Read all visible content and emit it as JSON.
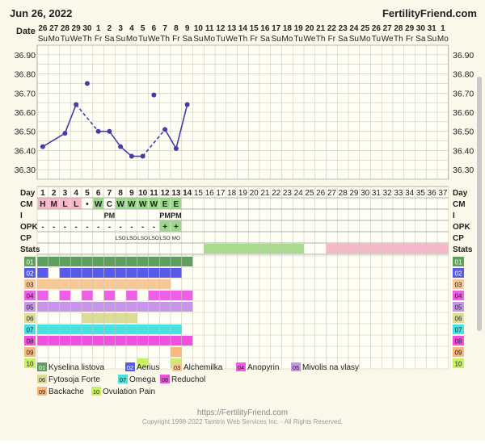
{
  "header": {
    "date": "Jun 26, 2022",
    "brand": "FertilityFriend.com",
    "date_row_label": "Date"
  },
  "dates": {
    "days": [
      "26",
      "27",
      "28",
      "29",
      "30",
      "1",
      "2",
      "3",
      "4",
      "5",
      "6",
      "7",
      "8",
      "9",
      "10",
      "11",
      "12",
      "13",
      "14",
      "15",
      "16",
      "17",
      "18",
      "19",
      "20",
      "21",
      "22",
      "23",
      "24",
      "25",
      "26",
      "27",
      "28",
      "29",
      "30",
      "31",
      "1"
    ],
    "weekdays": [
      "Su",
      "Mo",
      "Tu",
      "We",
      "Th",
      "Fr",
      "Sa",
      "Su",
      "Mo",
      "Tu",
      "We",
      "Th",
      "Fr",
      "Sa",
      "Su",
      "Mo",
      "Tu",
      "We",
      "Th",
      "Fr",
      "Sa",
      "Su",
      "Mo",
      "Tu",
      "We",
      "Th",
      "Fr",
      "Sa",
      "Su",
      "Mo",
      "Tu",
      "We",
      "Th",
      "Fr",
      "Sa",
      "Su",
      "Mo"
    ]
  },
  "chart_data": {
    "type": "line",
    "y_ticks": [
      "36.90",
      "36.80",
      "36.70",
      "36.60",
      "36.50",
      "36.40",
      "36.30"
    ],
    "ylim": [
      36.25,
      36.95
    ],
    "temperatures": [
      {
        "day": 1,
        "value": 36.42
      },
      {
        "day": 3,
        "value": 36.49
      },
      {
        "day": 4,
        "value": 36.64
      },
      {
        "day": 5,
        "value": 36.75
      },
      {
        "day": 6,
        "value": 36.5
      },
      {
        "day": 7,
        "value": 36.5
      },
      {
        "day": 8,
        "value": 36.42
      },
      {
        "day": 9,
        "value": 36.37
      },
      {
        "day": 10,
        "value": 36.37
      },
      {
        "day": 11,
        "value": 36.69
      },
      {
        "day": 12,
        "value": 36.51
      },
      {
        "day": 13,
        "value": 36.41
      },
      {
        "day": 14,
        "value": 36.64
      }
    ],
    "segments": [
      {
        "from": 1,
        "to": 3,
        "style": "solid"
      },
      {
        "from": 3,
        "to": 4,
        "style": "solid"
      },
      {
        "from": 4,
        "to": 6,
        "style": "dashed"
      },
      {
        "from": 6,
        "to": 7,
        "style": "solid"
      },
      {
        "from": 7,
        "to": 8,
        "style": "solid"
      },
      {
        "from": 8,
        "to": 9,
        "style": "solid"
      },
      {
        "from": 9,
        "to": 10,
        "style": "solid"
      },
      {
        "from": 10,
        "to": 12,
        "style": "dashed"
      },
      {
        "from": 12,
        "to": 13,
        "style": "solid"
      },
      {
        "from": 13,
        "to": 14,
        "style": "solid"
      }
    ],
    "line_color": "#4a3aa8"
  },
  "rows": {
    "labels": [
      "Day",
      "CM",
      "I",
      "OPK",
      "CP",
      "Stats"
    ],
    "days": [
      "1",
      "2",
      "3",
      "4",
      "5",
      "6",
      "7",
      "8",
      "9",
      "10",
      "11",
      "12",
      "13",
      "14",
      "15",
      "16",
      "17",
      "18",
      "19",
      "20",
      "21",
      "22",
      "23",
      "24",
      "25",
      "26",
      "27",
      "28",
      "29",
      "30",
      "31",
      "32",
      "33",
      "34",
      "35",
      "36",
      "37"
    ],
    "cm": [
      {
        "day": 1,
        "text": "H",
        "bg": "#f4b8c8"
      },
      {
        "day": 2,
        "text": "M",
        "bg": "#f4b8c8"
      },
      {
        "day": 3,
        "text": "L",
        "bg": "#f4b8c8"
      },
      {
        "day": 4,
        "text": "L",
        "bg": "#f4b8c8"
      },
      {
        "day": 5,
        "text": "•",
        "bg": ""
      },
      {
        "day": 6,
        "text": "W",
        "bg": "#9bd98a"
      },
      {
        "day": 7,
        "text": "C",
        "bg": ""
      },
      {
        "day": 8,
        "text": "W",
        "bg": "#9bd98a"
      },
      {
        "day": 9,
        "text": "W",
        "bg": "#9bd98a"
      },
      {
        "day": 10,
        "text": "W",
        "bg": "#9bd98a"
      },
      {
        "day": 11,
        "text": "W",
        "bg": "#9bd98a"
      },
      {
        "day": 12,
        "text": "E",
        "bg": "#9bd98a"
      },
      {
        "day": 13,
        "text": "E",
        "bg": "#9bd98a"
      }
    ],
    "intercourse": [
      {
        "day": 7,
        "text": "PM"
      },
      {
        "day": 12,
        "text": "PM"
      },
      {
        "day": 13,
        "text": "PM"
      }
    ],
    "opk": [
      {
        "day": 1,
        "text": "-"
      },
      {
        "day": 2,
        "text": "-"
      },
      {
        "day": 3,
        "text": "-"
      },
      {
        "day": 4,
        "text": "-"
      },
      {
        "day": 5,
        "text": "-"
      },
      {
        "day": 6,
        "text": "-"
      },
      {
        "day": 7,
        "text": "-"
      },
      {
        "day": 8,
        "text": "-"
      },
      {
        "day": 9,
        "text": "-"
      },
      {
        "day": 10,
        "text": "-"
      },
      {
        "day": 11,
        "text": "-"
      },
      {
        "day": 12,
        "text": "+",
        "bg": "#9bd98a"
      },
      {
        "day": 13,
        "text": "+",
        "bg": "#9bd98a"
      }
    ],
    "cp": [
      {
        "day": 8,
        "text": "LSO"
      },
      {
        "day": 9,
        "text": "LSO"
      },
      {
        "day": 10,
        "text": "LSO"
      },
      {
        "day": 11,
        "text": "LSO"
      },
      {
        "day": 12,
        "text": "LSO"
      },
      {
        "day": 13,
        "text": "MO"
      }
    ],
    "stats_bars": [
      {
        "from": 16,
        "to": 24,
        "color": "#a8dc8c"
      },
      {
        "from": 27,
        "to": 37,
        "color": "#f4b8c8"
      }
    ]
  },
  "medications": {
    "labels": [
      "01",
      "02",
      "03",
      "04",
      "05",
      "06",
      "07",
      "08",
      "09",
      "10"
    ],
    "colors": [
      "#5e9e5e",
      "#5a5ae8",
      "#f8c896",
      "#f05ee8",
      "#c896e8",
      "#dcdc96",
      "#48e0e0",
      "#f050e0",
      "#f8b87e",
      "#c8f064"
    ],
    "label_text_colors": [
      "#ffffff",
      "#ffffff",
      "#222222",
      "#222222",
      "#222222",
      "#222222",
      "#222222",
      "#222222",
      "#222222",
      "#222222"
    ],
    "bars": [
      [
        1,
        2,
        3,
        4,
        5,
        6,
        7,
        8,
        9,
        10,
        11,
        12,
        13,
        14
      ],
      [
        1,
        3,
        4,
        5,
        6,
        7,
        8,
        9,
        10,
        11,
        12,
        13
      ],
      [
        1,
        2,
        3,
        4,
        5,
        6,
        7,
        8,
        9,
        10,
        11,
        12
      ],
      [
        1,
        3,
        5,
        7,
        9,
        11,
        12,
        13,
        14
      ],
      [
        1,
        2,
        3,
        4,
        5,
        6,
        7,
        8,
        9,
        10,
        11,
        12,
        13,
        14
      ],
      [
        5,
        6,
        7,
        8,
        9
      ],
      [
        1,
        2,
        3,
        4,
        5,
        6,
        7,
        8,
        9,
        10,
        11,
        12,
        13
      ],
      [
        1,
        2,
        3,
        4,
        5,
        6,
        7,
        8,
        9,
        10,
        11,
        12,
        13,
        14
      ],
      [
        13
      ],
      [
        10,
        13
      ]
    ]
  },
  "legend": [
    {
      "code": "01",
      "name": "Kyselina listova"
    },
    {
      "code": "02",
      "name": "Aerius"
    },
    {
      "code": "03",
      "name": "Alchemilka"
    },
    {
      "code": "04",
      "name": "Anopyrin"
    },
    {
      "code": "05",
      "name": "Mivolis na vlasy"
    },
    {
      "code": "06",
      "name": "Fytosoja Forte"
    },
    {
      "code": "07",
      "name": "Omega"
    },
    {
      "code": "08",
      "name": "Reduchol"
    },
    {
      "code": "09",
      "name": "Backache"
    },
    {
      "code": "10",
      "name": "Ovulation Pain"
    }
  ],
  "footer": {
    "url": "https://FertilityFriend.com",
    "copyright": "Copyright 1998-2022 Tamtris Web Services Inc. - All Rights Reserved."
  }
}
